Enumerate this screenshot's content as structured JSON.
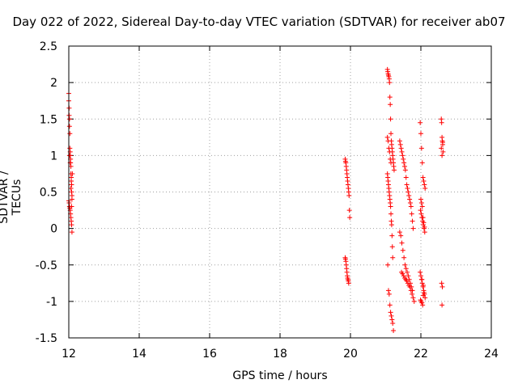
{
  "chart_data": {
    "type": "scatter",
    "title": "Day 022 of 2022, Sidereal Day-to-day VTEC variation (SDTVAR) for receiver ab07",
    "xlabel": "GPS time / hours",
    "ylabel": "SDTVAR / TECUs",
    "xlim": [
      12,
      24
    ],
    "ylim": [
      -1.5,
      2.5
    ],
    "xticks": [
      "12",
      "14",
      "16",
      "18",
      "20",
      "22",
      "24"
    ],
    "yticks": [
      "-1.5",
      "-1",
      "-0.5",
      "0",
      "0.5",
      "1",
      "1.5",
      "2",
      "2.5"
    ],
    "xtick_values": [
      12,
      14,
      16,
      18,
      20,
      22,
      24
    ],
    "ytick_values": [
      -1.5,
      -1,
      -0.5,
      0,
      0.5,
      1,
      1.5,
      2,
      2.5
    ],
    "grid": true,
    "marker": "+",
    "color": "#ff0000",
    "series": [
      {
        "name": "SDTVAR",
        "x": [
          12.0,
          12.0,
          12.01,
          12.01,
          12.02,
          12.02,
          12.03,
          12.03,
          12.04,
          12.04,
          12.05,
          12.05,
          12.06,
          12.06,
          12.07,
          12.07,
          12.08,
          12.08,
          12.09,
          12.09,
          12.0,
          12.01,
          12.02,
          12.03,
          12.04,
          12.05,
          12.06,
          12.07,
          12.08,
          12.09,
          12.1,
          12.02,
          12.04,
          12.06,
          12.08,
          19.85,
          19.86,
          19.87,
          19.88,
          19.89,
          19.9,
          19.91,
          19.92,
          19.93,
          19.94,
          19.95,
          19.96,
          19.97,
          19.98,
          19.85,
          19.86,
          19.87,
          19.88,
          19.89,
          19.9,
          19.91,
          19.92,
          19.93,
          19.94,
          19.95,
          21.05,
          21.06,
          21.07,
          21.08,
          21.09,
          21.1,
          21.11,
          21.12,
          21.13,
          21.14,
          21.15,
          21.16,
          21.17,
          21.18,
          21.19,
          21.2,
          21.21,
          21.22,
          21.23,
          21.24,
          21.05,
          21.06,
          21.07,
          21.08,
          21.09,
          21.1,
          21.11,
          21.12,
          21.13,
          21.14,
          21.15,
          21.16,
          21.17,
          21.18,
          21.19,
          21.2,
          21.06,
          21.08,
          21.1,
          21.12,
          21.14,
          21.16,
          21.18,
          21.2,
          21.22,
          21.05,
          21.07,
          21.09,
          21.11,
          21.13,
          21.15,
          21.4,
          21.42,
          21.44,
          21.46,
          21.48,
          21.5,
          21.52,
          21.54,
          21.56,
          21.58,
          21.6,
          21.62,
          21.64,
          21.66,
          21.68,
          21.7,
          21.72,
          21.74,
          21.76,
          21.78,
          21.4,
          21.43,
          21.46,
          21.49,
          21.52,
          21.55,
          21.58,
          21.61,
          21.64,
          21.67,
          21.7,
          21.73,
          21.76,
          21.45,
          21.48,
          21.51,
          21.54,
          21.57,
          21.6,
          21.63,
          21.66,
          21.69,
          21.72,
          21.75,
          21.78,
          21.81,
          21.98,
          22.0,
          22.02,
          22.04,
          22.06,
          22.08,
          22.1,
          22.12,
          21.99,
          22.01,
          22.03,
          22.05,
          22.07,
          22.09,
          22.11,
          21.98,
          22.0,
          22.02,
          22.04,
          22.06,
          22.08,
          22.1,
          22.12,
          21.99,
          22.01,
          22.03,
          22.05,
          22.07,
          22.09,
          22.0,
          22.02,
          22.04,
          22.06,
          22.08,
          22.1,
          22.03,
          22.07,
          22.58,
          22.59,
          22.6,
          22.61,
          22.62,
          22.63,
          22.58,
          22.6,
          22.62,
          22.59,
          22.61,
          22.6
        ],
        "y": [
          1.85,
          1.75,
          1.65,
          1.55,
          1.5,
          1.4,
          1.3,
          1.1,
          1.05,
          1.0,
          0.95,
          0.9,
          0.85,
          0.75,
          0.7,
          0.65,
          0.6,
          0.5,
          0.45,
          0.4,
          0.38,
          0.35,
          0.3,
          0.28,
          0.25,
          0.2,
          0.15,
          0.1,
          0.05,
          -0.05,
          0.75,
          1.0,
          0.9,
          0.55,
          0.3,
          0.95,
          0.92,
          0.9,
          0.85,
          0.8,
          0.75,
          0.7,
          0.65,
          0.6,
          0.55,
          0.5,
          0.45,
          0.25,
          0.15,
          -0.4,
          -0.42,
          -0.45,
          -0.5,
          -0.55,
          -0.6,
          -0.65,
          -0.68,
          -0.7,
          -0.72,
          -0.75,
          2.18,
          2.15,
          2.12,
          2.1,
          2.08,
          2.05,
          2.0,
          1.8,
          1.7,
          1.5,
          1.3,
          1.2,
          1.15,
          1.1,
          1.05,
          1.0,
          0.95,
          0.9,
          0.85,
          0.8,
          0.75,
          0.7,
          0.65,
          0.6,
          0.55,
          0.5,
          0.45,
          0.4,
          0.35,
          0.3,
          0.2,
          0.1,
          0.05,
          -0.1,
          -0.25,
          -0.4,
          -0.5,
          -0.85,
          -0.9,
          -1.05,
          -1.15,
          -1.2,
          -1.25,
          -1.3,
          -1.4,
          1.25,
          1.2,
          1.1,
          1.05,
          0.95,
          0.9,
          1.2,
          1.15,
          1.1,
          1.05,
          1.0,
          0.95,
          0.9,
          0.85,
          0.8,
          0.7,
          0.6,
          0.55,
          0.5,
          0.45,
          0.4,
          0.35,
          0.3,
          0.2,
          0.1,
          0.0,
          -0.05,
          -0.1,
          -0.2,
          -0.3,
          -0.4,
          -0.5,
          -0.55,
          -0.6,
          -0.65,
          -0.7,
          -0.75,
          -0.8,
          -0.85,
          -0.6,
          -0.62,
          -0.65,
          -0.68,
          -0.7,
          -0.72,
          -0.75,
          -0.78,
          -0.8,
          -0.85,
          -0.9,
          -0.95,
          -1.0,
          1.45,
          1.3,
          1.1,
          0.9,
          0.7,
          0.65,
          0.6,
          0.55,
          0.25,
          0.2,
          0.15,
          0.1,
          0.05,
          0.0,
          -0.05,
          -0.6,
          -0.65,
          -0.7,
          -0.75,
          -0.8,
          -0.85,
          -0.9,
          -0.95,
          -0.98,
          -1.0,
          -1.02,
          -1.05,
          -0.92,
          -0.88,
          0.4,
          0.35,
          0.3,
          0.15,
          0.08,
          0.02,
          -0.7,
          -0.78,
          1.5,
          1.45,
          1.25,
          1.2,
          1.15,
          1.05,
          1.1,
          1.0,
          1.18,
          -0.75,
          -0.8,
          -1.05
        ]
      }
    ]
  }
}
